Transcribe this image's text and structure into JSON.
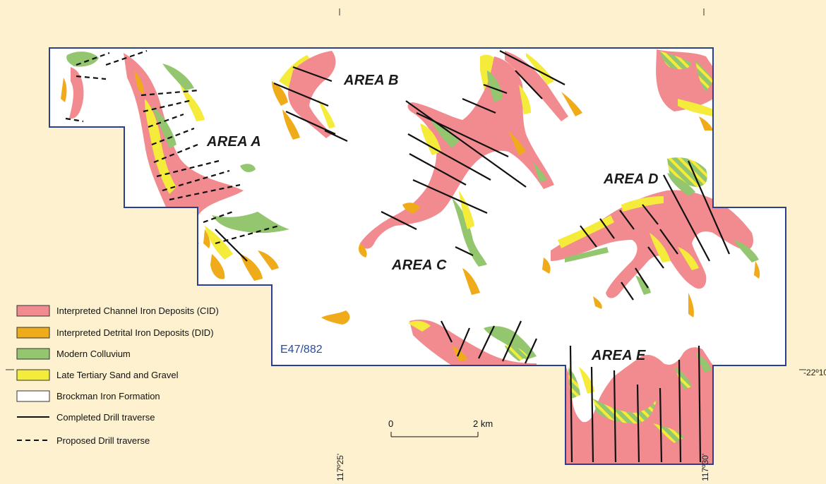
{
  "areas": {
    "a": "AREA A",
    "b": "AREA B",
    "c": "AREA C",
    "d": "AREA D",
    "e": "AREA E"
  },
  "lease_id": "E47/882",
  "coordinates": {
    "lat": "-22º10'",
    "lon_left": "117º25'",
    "lon_right": "117º30'"
  },
  "scale": {
    "start": "0",
    "end": "2 km"
  },
  "legend": [
    {
      "label": "Interpreted Channel Iron Deposits (CID)",
      "color": "#f28b8f",
      "kind": "swatch"
    },
    {
      "label": "Interpreted Detrital Iron Deposits (DID)",
      "color": "#efab1a",
      "kind": "swatch"
    },
    {
      "label": "Modern Colluvium",
      "color": "#93c66f",
      "kind": "swatch"
    },
    {
      "label": "Late Tertiary Sand and Gravel",
      "color": "#f4eb3a",
      "kind": "swatch"
    },
    {
      "label": "Brockman Iron Formation",
      "color": "#ffffff",
      "kind": "swatch"
    },
    {
      "label": "Completed Drill traverse",
      "kind": "solid-line"
    },
    {
      "label": "Proposed Drill traverse",
      "kind": "dashed-line"
    }
  ],
  "colors": {
    "background": "#fdf1cf",
    "boundary": "#2a3f8f",
    "cid": "#f28b8f",
    "did": "#efab1a",
    "colluvium": "#93c66f",
    "sand": "#f4eb3a"
  }
}
